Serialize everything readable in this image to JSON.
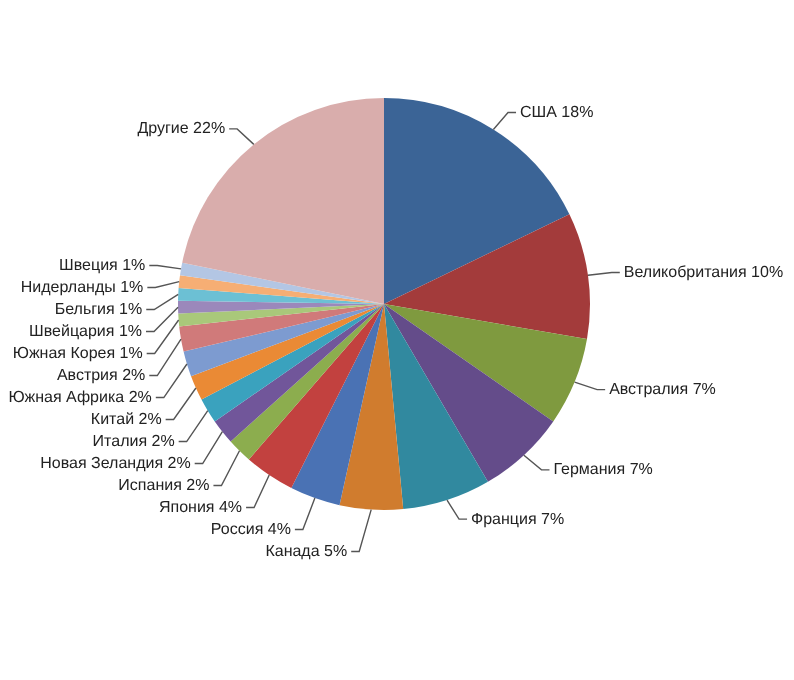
{
  "chart_data": {
    "type": "pie",
    "categories": [
      "США",
      "Великобритания",
      "Австралия",
      "Германия",
      "Франция",
      "Канада",
      "Россия",
      "Япония",
      "Испания",
      "Новая Зеландия",
      "Италия",
      "Китай",
      "Южная Африка",
      "Австрия",
      "Южная Корея",
      "Швейцария",
      "Бельгия",
      "Нидерланды",
      "Швеция",
      "Другие"
    ],
    "values": [
      18,
      10,
      7,
      7,
      7,
      5,
      4,
      4,
      2,
      2,
      2,
      2,
      2,
      2,
      1,
      1,
      1,
      1,
      1,
      22
    ],
    "value_labels": [
      "18%",
      "10%",
      "7%",
      "7%",
      "7%",
      "5%",
      "4%",
      "4%",
      "2%",
      "2%",
      "2%",
      "2%",
      "2%",
      "2%",
      "1%",
      "1%",
      "1%",
      "1%",
      "1%",
      "22%"
    ],
    "colors": [
      "#3b6496",
      "#a33b3b",
      "#7f9a3f",
      "#644c8a",
      "#31899f",
      "#d07c2e",
      "#4a72b4",
      "#c2413f",
      "#8cad4e",
      "#71569a",
      "#3aa2be",
      "#ea8a35",
      "#7d9bd0",
      "#d07a7a",
      "#a9c87a",
      "#9b88bb",
      "#6cc0d4",
      "#f6ae74",
      "#b3c6e4",
      "#d9adac"
    ],
    "legend": false
  }
}
